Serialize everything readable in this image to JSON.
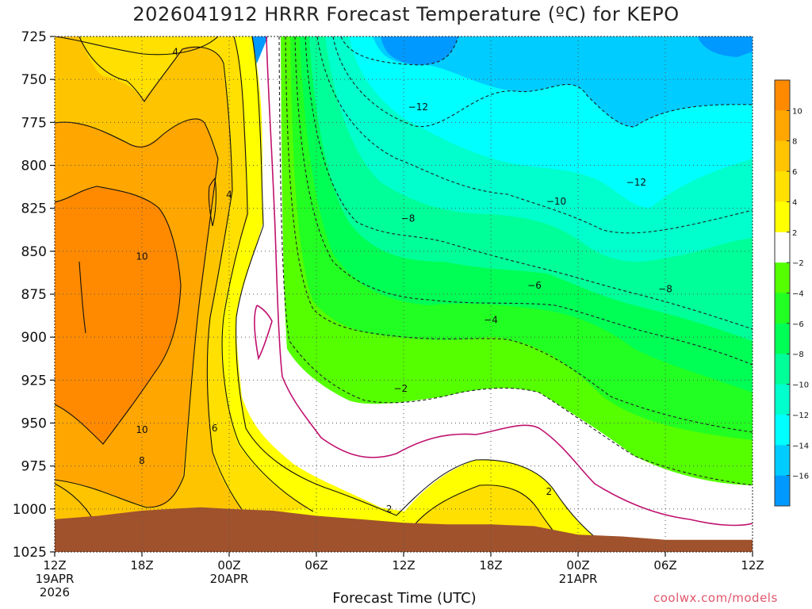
{
  "title": "2026041912 HRRR Forecast Temperature (ºC) for KEPO",
  "xlabel": "Forecast Time (UTC)",
  "credit": "coolwx.com/models",
  "chart_data": {
    "type": "heatmap",
    "title": "2026041912 HRRR Forecast Temperature (ºC) for KEPO",
    "xlabel": "Forecast Time (UTC)",
    "ylabel": "",
    "y_axis": "pressure (hPa), inverted",
    "ylim": [
      1025,
      725
    ],
    "y_ticks": [
      "725",
      "750",
      "775",
      "800",
      "825",
      "850",
      "875",
      "900",
      "925",
      "950",
      "975",
      "1000",
      "1025"
    ],
    "x_ticks": [
      {
        "hour": 0,
        "label": "12Z",
        "sub1": "19APR",
        "sub2": "2026"
      },
      {
        "hour": 6,
        "label": "18Z",
        "sub1": "",
        "sub2": ""
      },
      {
        "hour": 12,
        "label": "00Z",
        "sub1": "20APR",
        "sub2": ""
      },
      {
        "hour": 18,
        "label": "06Z",
        "sub1": "",
        "sub2": ""
      },
      {
        "hour": 24,
        "label": "12Z",
        "sub1": "",
        "sub2": ""
      },
      {
        "hour": 30,
        "label": "18Z",
        "sub1": "",
        "sub2": ""
      },
      {
        "hour": 36,
        "label": "00Z",
        "sub1": "21APR",
        "sub2": ""
      },
      {
        "hour": 42,
        "label": "06Z",
        "sub1": "",
        "sub2": ""
      },
      {
        "hour": 48,
        "label": "12Z",
        "sub1": "",
        "sub2": ""
      }
    ],
    "xlim": [
      0,
      48
    ],
    "grid": true,
    "colorbar": {
      "labels": [
        "10",
        "8",
        "6",
        "4",
        "2",
        "−2",
        "−4",
        "−6",
        "−8",
        "−10",
        "−12",
        "−14",
        "−16"
      ],
      "bins": [
        {
          "color": "#ff8a00"
        },
        {
          "color": "#ffa600"
        },
        {
          "color": "#ffc400"
        },
        {
          "color": "#ffe000"
        },
        {
          "color": "#ffff00"
        },
        {
          "color": "#ffffff"
        },
        {
          "color": "#55ff00"
        },
        {
          "color": "#22ff22"
        },
        {
          "color": "#00ff55"
        },
        {
          "color": "#00ff99"
        },
        {
          "color": "#00ffcc"
        },
        {
          "color": "#00ffff"
        },
        {
          "color": "#00ccff"
        },
        {
          "color": "#0099ff"
        }
      ]
    },
    "contour_labels": [
      {
        "text": "4",
        "hour": 8.3,
        "p": 734
      },
      {
        "text": "4",
        "hour": 12.0,
        "p": 817
      },
      {
        "text": "10",
        "hour": 6.0,
        "p": 853
      },
      {
        "text": "10",
        "hour": 6.0,
        "p": 954
      },
      {
        "text": "8",
        "hour": 6.0,
        "p": 972
      },
      {
        "text": "6",
        "hour": 11.0,
        "p": 953
      },
      {
        "text": "−12",
        "hour": 25.0,
        "p": 766
      },
      {
        "text": "−12",
        "hour": 40.0,
        "p": 810
      },
      {
        "text": "−10",
        "hour": 34.5,
        "p": 821
      },
      {
        "text": "−8",
        "hour": 24.3,
        "p": 831
      },
      {
        "text": "−6",
        "hour": 33.0,
        "p": 870
      },
      {
        "text": "−8",
        "hour": 42.0,
        "p": 872
      },
      {
        "text": "−4",
        "hour": 30.0,
        "p": 890
      },
      {
        "text": "−2",
        "hour": 23.8,
        "p": 930
      },
      {
        "text": "2",
        "hour": 23.0,
        "p": 1000
      },
      {
        "text": "2",
        "hour": 34.0,
        "p": 990
      }
    ],
    "surface_pressure": [
      [
        0,
        1006
      ],
      [
        3,
        1004
      ],
      [
        6,
        1001
      ],
      [
        8,
        1000
      ],
      [
        10,
        999
      ],
      [
        12,
        1000
      ],
      [
        15,
        1001
      ],
      [
        18,
        1004
      ],
      [
        21,
        1006
      ],
      [
        24,
        1008
      ],
      [
        27,
        1009
      ],
      [
        30,
        1009
      ],
      [
        33,
        1010
      ],
      [
        36,
        1015
      ],
      [
        39,
        1016
      ],
      [
        42,
        1018
      ],
      [
        45,
        1018
      ],
      [
        48,
        1018
      ]
    ]
  }
}
